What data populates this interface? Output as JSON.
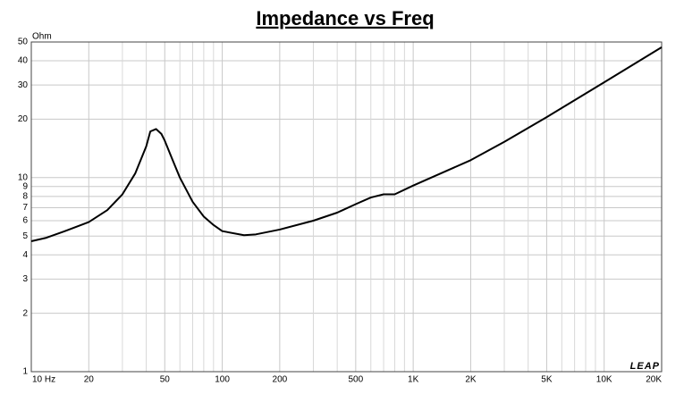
{
  "chart_data": {
    "type": "line",
    "title": "Impedance vs Freq",
    "y_unit": "Ohm",
    "logo": "LEAP",
    "x": [
      10,
      12,
      15,
      20,
      25,
      30,
      35,
      40,
      42,
      45,
      48,
      50,
      55,
      60,
      70,
      80,
      90,
      100,
      130,
      150,
      200,
      300,
      400,
      500,
      600,
      700,
      800,
      1000,
      2000,
      3000,
      5000,
      10000,
      20000
    ],
    "values": [
      4.7,
      4.9,
      5.3,
      5.9,
      6.8,
      8.2,
      10.5,
      14.5,
      17.3,
      17.8,
      16.8,
      15.5,
      12.3,
      10,
      7.5,
      6.3,
      5.7,
      5.3,
      5.05,
      5.1,
      5.4,
      6.0,
      6.6,
      7.3,
      7.9,
      8.2,
      8.2,
      9.1,
      12.3,
      15.3,
      20.5,
      31,
      47
    ],
    "color": "#000000",
    "xscale": "log",
    "yscale": "log",
    "grid": true,
    "xlim": [
      10,
      20000
    ],
    "ylim": [
      1,
      50
    ],
    "xticks": [
      {
        "value": 10,
        "label": "10  Hz"
      },
      20,
      50,
      100,
      200,
      500,
      {
        "value": 1000,
        "label": "1K"
      },
      {
        "value": 2000,
        "label": "2K"
      },
      {
        "value": 5000,
        "label": "5K"
      },
      {
        "value": 10000,
        "label": "10K"
      },
      {
        "value": 20000,
        "label": "20K"
      }
    ],
    "xminor": [
      30,
      40,
      60,
      70,
      80,
      90,
      300,
      400,
      600,
      700,
      800,
      900,
      3000,
      4000,
      6000,
      7000,
      8000,
      9000
    ],
    "yticks": [
      1,
      2,
      3,
      4,
      5,
      6,
      7,
      8,
      9,
      10,
      20,
      30,
      40,
      50
    ]
  }
}
